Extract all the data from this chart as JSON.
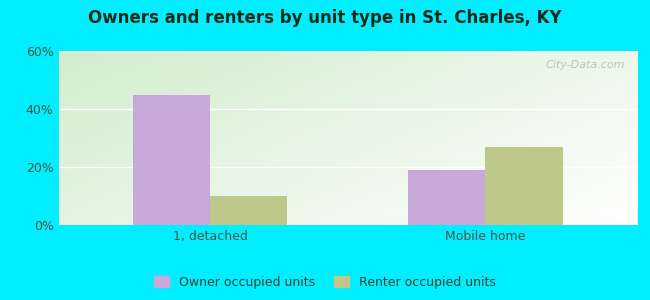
{
  "title": "Owners and renters by unit type in St. Charles, KY",
  "categories": [
    "1, detached",
    "Mobile home"
  ],
  "owner_values": [
    45,
    19
  ],
  "renter_values": [
    10,
    27
  ],
  "owner_color": "#c8a8d8",
  "renter_color": "#bec88a",
  "owner_label": "Owner occupied units",
  "renter_label": "Renter occupied units",
  "ylim": [
    0,
    60
  ],
  "yticks": [
    0,
    20,
    40,
    60
  ],
  "ytick_labels": [
    "0%",
    "20%",
    "40%",
    "60%"
  ],
  "bar_width": 0.28,
  "background_outer": "#00eeff",
  "watermark": "City-Data.com",
  "title_fontsize": 12,
  "tick_fontsize": 9,
  "legend_fontsize": 9
}
